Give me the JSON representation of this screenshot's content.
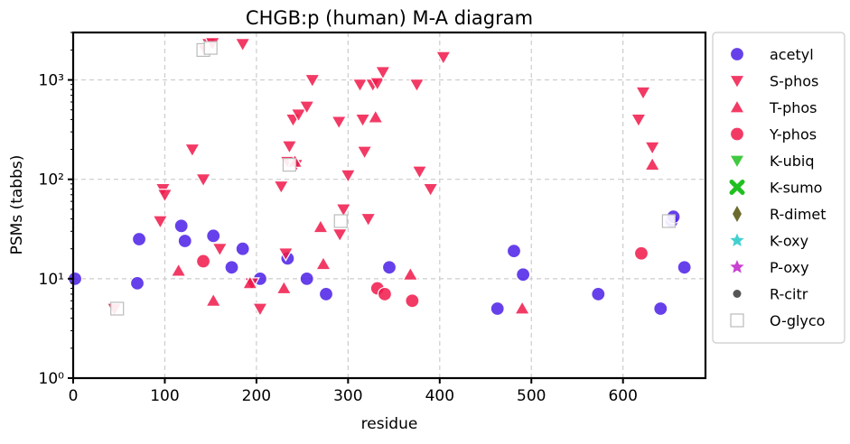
{
  "chart_data": {
    "type": "scatter",
    "title": "CHGB:p (human) M-A diagram",
    "xlabel": "residue",
    "ylabel": "PSMs (tabbs)",
    "xlim": [
      0,
      690
    ],
    "ylim": [
      1,
      3000
    ],
    "yscale": "log",
    "grid": true,
    "legend_position": "right-outside",
    "xticks": [
      0,
      100,
      200,
      300,
      400,
      500,
      600
    ],
    "yticks": [
      {
        "value": 1,
        "label": "10⁰"
      },
      {
        "value": 10,
        "label": "10¹"
      },
      {
        "value": 100,
        "label": "10²"
      },
      {
        "value": 1000,
        "label": "10³"
      }
    ],
    "series": [
      {
        "name": "acetyl",
        "color": "#4b1ee6",
        "marker": "circle",
        "points": [
          [
            2,
            10
          ],
          [
            70,
            9
          ],
          [
            72,
            25
          ],
          [
            118,
            34
          ],
          [
            122,
            24
          ],
          [
            153,
            27
          ],
          [
            173,
            13
          ],
          [
            185,
            20
          ],
          [
            204,
            10
          ],
          [
            234,
            16
          ],
          [
            255,
            10
          ],
          [
            276,
            7
          ],
          [
            345,
            13
          ],
          [
            463,
            5
          ],
          [
            481,
            19
          ],
          [
            491,
            11
          ],
          [
            573,
            7
          ],
          [
            641,
            5
          ],
          [
            653,
            38
          ],
          [
            655,
            42
          ],
          [
            667,
            13
          ]
        ]
      },
      {
        "name": "S-phos",
        "color": "#f0174a",
        "marker": "triangle-down",
        "points": [
          [
            45,
            5
          ],
          [
            95,
            38
          ],
          [
            98,
            80
          ],
          [
            100,
            70
          ],
          [
            130,
            200
          ],
          [
            142,
            100
          ],
          [
            144,
            2000
          ],
          [
            148,
            2300
          ],
          [
            152,
            2350
          ],
          [
            160,
            20
          ],
          [
            185,
            2300
          ],
          [
            195,
            9
          ],
          [
            204,
            5
          ],
          [
            227,
            85
          ],
          [
            232,
            18
          ],
          [
            234,
            150
          ],
          [
            236,
            215
          ],
          [
            240,
            400
          ],
          [
            243,
            140
          ],
          [
            246,
            450
          ],
          [
            255,
            540
          ],
          [
            261,
            1000
          ],
          [
            290,
            380
          ],
          [
            291,
            28
          ],
          [
            295,
            50
          ],
          [
            300,
            110
          ],
          [
            313,
            900
          ],
          [
            316,
            400
          ],
          [
            318,
            190
          ],
          [
            322,
            40
          ],
          [
            327,
            900
          ],
          [
            332,
            930
          ],
          [
            338,
            1200
          ],
          [
            375,
            900
          ],
          [
            378,
            120
          ],
          [
            390,
            80
          ],
          [
            404,
            1700
          ],
          [
            617,
            400
          ],
          [
            622,
            750
          ],
          [
            632,
            210
          ]
        ]
      },
      {
        "name": "T-phos",
        "color": "#f0174a",
        "marker": "triangle-up",
        "points": [
          [
            115,
            12
          ],
          [
            153,
            6
          ],
          [
            193,
            9
          ],
          [
            230,
            8
          ],
          [
            242,
            150
          ],
          [
            270,
            33
          ],
          [
            273,
            14
          ],
          [
            330,
            420
          ],
          [
            368,
            11
          ],
          [
            490,
            5
          ],
          [
            632,
            140
          ]
        ]
      },
      {
        "name": "Y-phos",
        "color": "#f0174a",
        "marker": "circle",
        "points": [
          [
            142,
            15
          ],
          [
            332,
            8
          ],
          [
            340,
            7
          ],
          [
            370,
            6
          ],
          [
            620,
            18
          ]
        ]
      },
      {
        "name": "K-ubiq",
        "color": "#20c020",
        "marker": "triangle-down",
        "points": []
      },
      {
        "name": "K-sumo",
        "color": "#20c020",
        "marker": "x",
        "points": []
      },
      {
        "name": "R-dimet",
        "color": "#6b6b2f",
        "marker": "diamond",
        "points": []
      },
      {
        "name": "K-oxy",
        "color": "#20c8c8",
        "marker": "star",
        "points": []
      },
      {
        "name": "P-oxy",
        "color": "#c020c8",
        "marker": "star",
        "points": []
      },
      {
        "name": "R-citr",
        "color": "#555555",
        "marker": "small-circle",
        "points": []
      },
      {
        "name": "O-glyco",
        "color": "#ffffff",
        "marker": "square-open",
        "points": [
          [
            48,
            5
          ],
          [
            142,
            2000
          ],
          [
            150,
            2100
          ],
          [
            236,
            140
          ],
          [
            292,
            38
          ],
          [
            650,
            38
          ]
        ]
      }
    ]
  }
}
